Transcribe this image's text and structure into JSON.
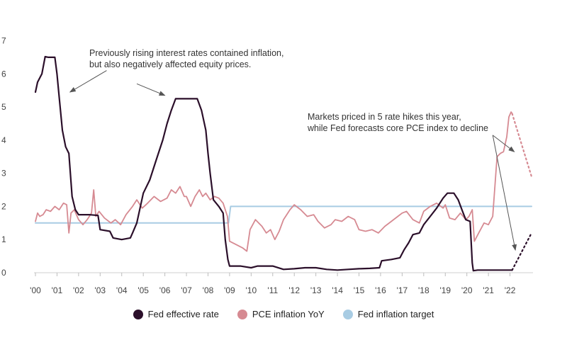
{
  "chart_data": {
    "type": "line",
    "title": "",
    "xlabel": "",
    "ylabel": "",
    "xlim": [
      2000,
      2023
    ],
    "ylim": [
      0,
      7
    ],
    "grid": false,
    "legend_position": "bottom-center",
    "x_ticks": [
      {
        "value": 2000,
        "label": "'00"
      },
      {
        "value": 2001,
        "label": "'01"
      },
      {
        "value": 2002,
        "label": "'02"
      },
      {
        "value": 2003,
        "label": "'03"
      },
      {
        "value": 2004,
        "label": "'04"
      },
      {
        "value": 2005,
        "label": "'05"
      },
      {
        "value": 2006,
        "label": "'06"
      },
      {
        "value": 2007,
        "label": "'07"
      },
      {
        "value": 2008,
        "label": "'08"
      },
      {
        "value": 2009,
        "label": "'09"
      },
      {
        "value": 2010,
        "label": "'10"
      },
      {
        "value": 2011,
        "label": "'11"
      },
      {
        "value": 2012,
        "label": "'12"
      },
      {
        "value": 2013,
        "label": "'13"
      },
      {
        "value": 2014,
        "label": "'14"
      },
      {
        "value": 2015,
        "label": "'15"
      },
      {
        "value": 2016,
        "label": "'16"
      },
      {
        "value": 2017,
        "label": "'17"
      },
      {
        "value": 2018,
        "label": "'18"
      },
      {
        "value": 2019,
        "label": "'19"
      },
      {
        "value": 2020,
        "label": "'20"
      },
      {
        "value": 2021,
        "label": "'21"
      },
      {
        "value": 2022,
        "label": "'22"
      }
    ],
    "y_ticks": [
      {
        "value": 0,
        "label": "0"
      },
      {
        "value": 1,
        "label": "1"
      },
      {
        "value": 2,
        "label": "2"
      },
      {
        "value": 3,
        "label": "3"
      },
      {
        "value": 4,
        "label": "4"
      },
      {
        "value": 5,
        "label": "5"
      },
      {
        "value": 6,
        "label": "6"
      },
      {
        "value": 7,
        "label": "7"
      }
    ],
    "series": [
      {
        "name": "Fed effective rate",
        "color": "#2b0f2a",
        "points": [
          [
            2000.0,
            5.45
          ],
          [
            2000.1,
            5.75
          ],
          [
            2000.3,
            6.0
          ],
          [
            2000.45,
            6.52
          ],
          [
            2000.6,
            6.5
          ],
          [
            2000.9,
            6.5
          ],
          [
            2001.0,
            6.0
          ],
          [
            2001.1,
            5.3
          ],
          [
            2001.25,
            4.3
          ],
          [
            2001.4,
            3.8
          ],
          [
            2001.55,
            3.6
          ],
          [
            2001.7,
            2.3
          ],
          [
            2001.85,
            1.9
          ],
          [
            2002.0,
            1.75
          ],
          [
            2002.5,
            1.75
          ],
          [
            2002.9,
            1.73
          ],
          [
            2003.0,
            1.3
          ],
          [
            2003.45,
            1.25
          ],
          [
            2003.6,
            1.05
          ],
          [
            2004.0,
            1.0
          ],
          [
            2004.4,
            1.05
          ],
          [
            2004.5,
            1.2
          ],
          [
            2004.7,
            1.5
          ],
          [
            2005.0,
            2.4
          ],
          [
            2005.3,
            2.8
          ],
          [
            2005.6,
            3.4
          ],
          [
            2005.9,
            4.0
          ],
          [
            2006.1,
            4.5
          ],
          [
            2006.3,
            4.9
          ],
          [
            2006.5,
            5.25
          ],
          [
            2007.0,
            5.25
          ],
          [
            2007.5,
            5.25
          ],
          [
            2007.7,
            4.9
          ],
          [
            2007.9,
            4.3
          ],
          [
            2008.0,
            3.6
          ],
          [
            2008.1,
            3.0
          ],
          [
            2008.25,
            2.2
          ],
          [
            2008.5,
            2.0
          ],
          [
            2008.7,
            1.8
          ],
          [
            2008.8,
            1.0
          ],
          [
            2008.92,
            0.4
          ],
          [
            2009.0,
            0.2
          ],
          [
            2009.5,
            0.2
          ],
          [
            2010.0,
            0.15
          ],
          [
            2010.3,
            0.2
          ],
          [
            2011.0,
            0.2
          ],
          [
            2011.5,
            0.1
          ],
          [
            2012.0,
            0.12
          ],
          [
            2012.5,
            0.15
          ],
          [
            2013.0,
            0.15
          ],
          [
            2013.5,
            0.1
          ],
          [
            2014.0,
            0.08
          ],
          [
            2014.5,
            0.1
          ],
          [
            2015.0,
            0.12
          ],
          [
            2015.5,
            0.13
          ],
          [
            2015.95,
            0.15
          ],
          [
            2016.05,
            0.36
          ],
          [
            2016.5,
            0.4
          ],
          [
            2016.9,
            0.45
          ],
          [
            2017.1,
            0.7
          ],
          [
            2017.3,
            0.9
          ],
          [
            2017.5,
            1.15
          ],
          [
            2017.8,
            1.2
          ],
          [
            2018.0,
            1.45
          ],
          [
            2018.3,
            1.7
          ],
          [
            2018.6,
            1.95
          ],
          [
            2018.9,
            2.25
          ],
          [
            2019.1,
            2.4
          ],
          [
            2019.4,
            2.4
          ],
          [
            2019.6,
            2.2
          ],
          [
            2019.8,
            1.85
          ],
          [
            2019.95,
            1.6
          ],
          [
            2020.15,
            1.55
          ],
          [
            2020.25,
            0.3
          ],
          [
            2020.3,
            0.06
          ],
          [
            2020.5,
            0.08
          ],
          [
            2021.0,
            0.08
          ],
          [
            2021.5,
            0.08
          ],
          [
            2022.0,
            0.08
          ],
          [
            2022.1,
            0.08
          ]
        ]
      },
      {
        "name": "PCE inflation YoY",
        "color": "#d68a92",
        "points": [
          [
            2000.0,
            1.55
          ],
          [
            2000.1,
            1.8
          ],
          [
            2000.2,
            1.7
          ],
          [
            2000.35,
            1.75
          ],
          [
            2000.5,
            1.9
          ],
          [
            2000.7,
            1.85
          ],
          [
            2000.9,
            2.0
          ],
          [
            2001.1,
            1.9
          ],
          [
            2001.3,
            2.1
          ],
          [
            2001.45,
            2.05
          ],
          [
            2001.55,
            1.2
          ],
          [
            2001.65,
            1.8
          ],
          [
            2001.8,
            1.9
          ],
          [
            2002.0,
            1.6
          ],
          [
            2002.2,
            1.45
          ],
          [
            2002.4,
            1.6
          ],
          [
            2002.6,
            1.8
          ],
          [
            2002.7,
            2.5
          ],
          [
            2002.8,
            1.7
          ],
          [
            2002.95,
            1.85
          ],
          [
            2003.2,
            1.65
          ],
          [
            2003.5,
            1.5
          ],
          [
            2003.7,
            1.6
          ],
          [
            2003.95,
            1.45
          ],
          [
            2004.2,
            1.75
          ],
          [
            2004.5,
            2.0
          ],
          [
            2004.7,
            2.2
          ],
          [
            2004.95,
            1.95
          ],
          [
            2005.2,
            2.1
          ],
          [
            2005.5,
            2.3
          ],
          [
            2005.8,
            2.15
          ],
          [
            2006.1,
            2.25
          ],
          [
            2006.3,
            2.5
          ],
          [
            2006.5,
            2.4
          ],
          [
            2006.7,
            2.6
          ],
          [
            2006.9,
            2.3
          ],
          [
            2007.0,
            2.3
          ],
          [
            2007.2,
            2.0
          ],
          [
            2007.4,
            2.3
          ],
          [
            2007.6,
            2.5
          ],
          [
            2007.75,
            2.3
          ],
          [
            2007.9,
            2.4
          ],
          [
            2008.1,
            2.2
          ],
          [
            2008.3,
            2.3
          ],
          [
            2008.5,
            2.25
          ],
          [
            2008.7,
            2.1
          ],
          [
            2008.9,
            1.7
          ],
          [
            2009.0,
            0.95
          ],
          [
            2009.3,
            0.85
          ],
          [
            2009.6,
            0.75
          ],
          [
            2009.8,
            0.65
          ],
          [
            2009.95,
            1.3
          ],
          [
            2010.2,
            1.6
          ],
          [
            2010.5,
            1.4
          ],
          [
            2010.7,
            1.2
          ],
          [
            2010.9,
            1.3
          ],
          [
            2011.1,
            1.0
          ],
          [
            2011.3,
            1.25
          ],
          [
            2011.5,
            1.6
          ],
          [
            2011.8,
            1.9
          ],
          [
            2012.0,
            2.05
          ],
          [
            2012.3,
            1.9
          ],
          [
            2012.6,
            1.7
          ],
          [
            2012.9,
            1.75
          ],
          [
            2013.1,
            1.55
          ],
          [
            2013.4,
            1.35
          ],
          [
            2013.7,
            1.45
          ],
          [
            2013.9,
            1.6
          ],
          [
            2014.2,
            1.55
          ],
          [
            2014.5,
            1.7
          ],
          [
            2014.8,
            1.6
          ],
          [
            2015.0,
            1.3
          ],
          [
            2015.3,
            1.25
          ],
          [
            2015.6,
            1.3
          ],
          [
            2015.9,
            1.2
          ],
          [
            2016.2,
            1.4
          ],
          [
            2016.5,
            1.55
          ],
          [
            2016.8,
            1.7
          ],
          [
            2017.0,
            1.8
          ],
          [
            2017.2,
            1.85
          ],
          [
            2017.5,
            1.6
          ],
          [
            2017.8,
            1.5
          ],
          [
            2018.0,
            1.85
          ],
          [
            2018.3,
            2.0
          ],
          [
            2018.6,
            2.1
          ],
          [
            2018.9,
            1.95
          ],
          [
            2019.0,
            2.05
          ],
          [
            2019.2,
            1.65
          ],
          [
            2019.45,
            1.6
          ],
          [
            2019.7,
            1.8
          ],
          [
            2019.95,
            1.6
          ],
          [
            2020.1,
            1.7
          ],
          [
            2020.25,
            1.9
          ],
          [
            2020.35,
            0.95
          ],
          [
            2020.55,
            1.2
          ],
          [
            2020.8,
            1.5
          ],
          [
            2021.0,
            1.45
          ],
          [
            2021.2,
            1.7
          ],
          [
            2021.4,
            3.5
          ],
          [
            2021.55,
            3.6
          ],
          [
            2021.7,
            3.65
          ],
          [
            2021.85,
            4.1
          ],
          [
            2021.95,
            4.7
          ],
          [
            2022.05,
            4.85
          ],
          [
            2022.1,
            4.8
          ]
        ]
      },
      {
        "name": "Fed inflation target",
        "color": "#a8cce3",
        "points": [
          [
            2000.0,
            1.5
          ],
          [
            2008.95,
            1.5
          ],
          [
            2009.05,
            2.0
          ],
          [
            2023.0,
            2.0
          ]
        ]
      }
    ],
    "projections": [
      {
        "series": "Fed effective rate",
        "style": "dotted",
        "color": "#2b0f2a",
        "points": [
          [
            2022.1,
            0.08
          ],
          [
            2023.0,
            1.2
          ]
        ]
      },
      {
        "series": "PCE inflation YoY",
        "style": "dotted",
        "color": "#d68a92",
        "points": [
          [
            2022.1,
            4.8
          ],
          [
            2023.0,
            2.9
          ]
        ]
      }
    ],
    "annotations": [
      {
        "id": "rates",
        "lines": [
          "Previously rising interest rates contained inflation,",
          "but also negatively affected equity prices."
        ],
        "arrows": [
          {
            "from": [
              2003.3,
              6.1
            ],
            "to": [
              2001.6,
              5.45
            ]
          },
          {
            "from": [
              2004.7,
              5.7
            ],
            "to": [
              2006.0,
              5.35
            ]
          }
        ]
      },
      {
        "id": "hikes",
        "lines": [
          "Markets priced in 5 rate hikes this year,",
          "while Fed forecasts core PCE index to decline"
        ],
        "arrows": [
          {
            "from": [
              2021.2,
              4.15
            ],
            "to": [
              2022.2,
              3.65
            ]
          },
          {
            "from": [
              2021.2,
              4.15
            ],
            "to": [
              2022.25,
              0.68
            ]
          }
        ]
      }
    ]
  }
}
